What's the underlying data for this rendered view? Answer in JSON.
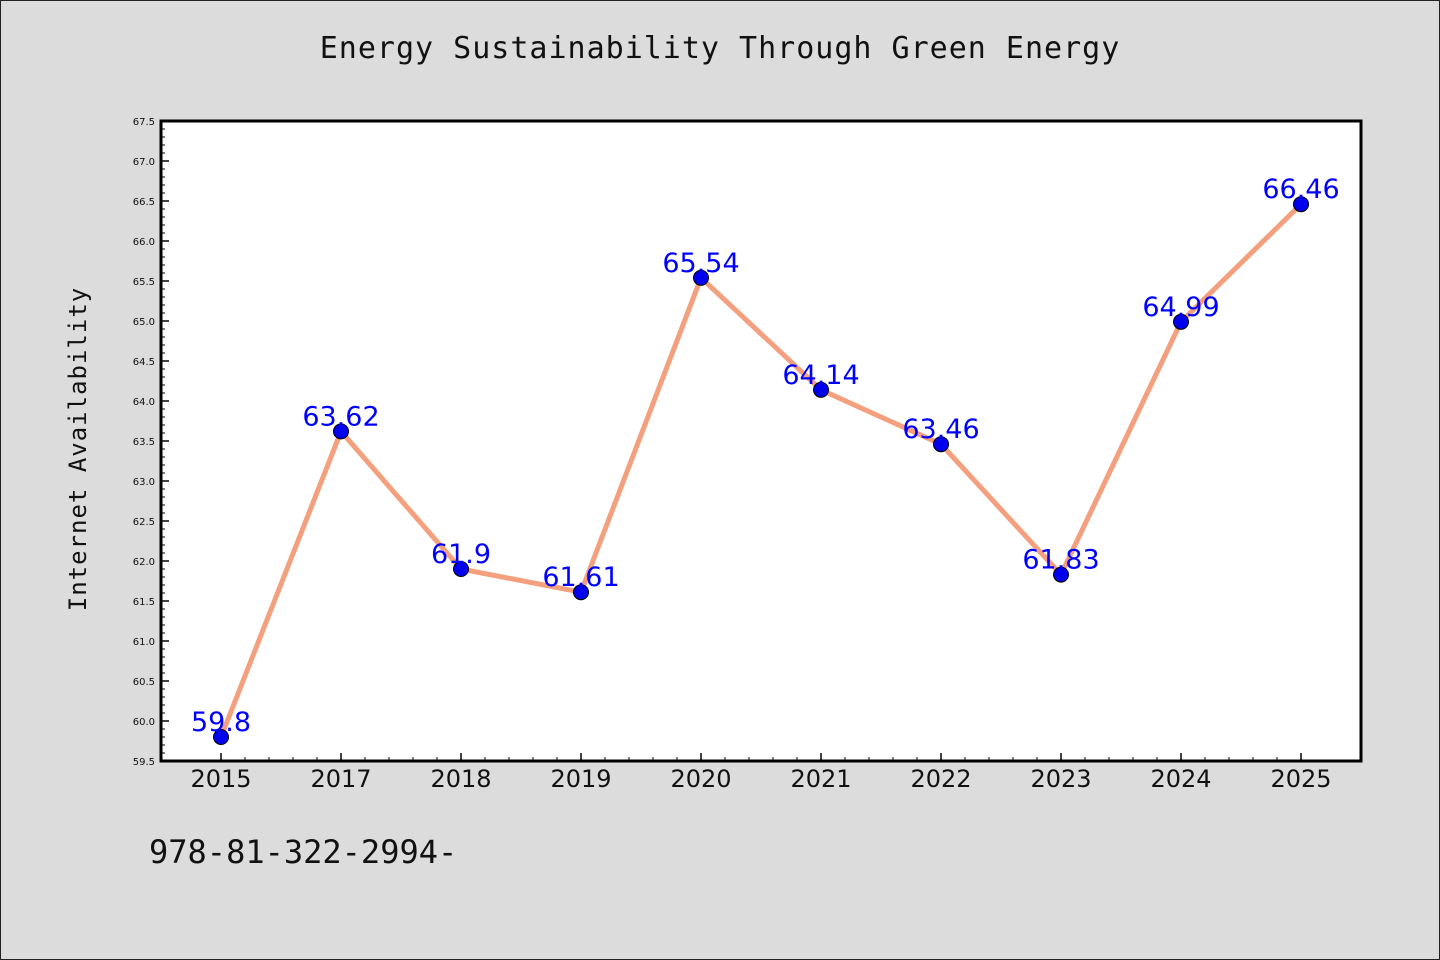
{
  "chart_data": {
    "type": "line",
    "title": "Energy Sustainability Through Green Energy",
    "xlabel": "",
    "ylabel": "Internet Availability",
    "categories": [
      "2015",
      "2017",
      "2018",
      "2019",
      "2020",
      "2021",
      "2022",
      "2023",
      "2024",
      "2025"
    ],
    "series": [
      {
        "values": [
          59.8,
          63.62,
          61.9,
          61.61,
          65.54,
          64.14,
          63.46,
          61.83,
          64.99,
          66.46
        ],
        "line_color": "#f4a07e",
        "marker_color": "#0000ee"
      }
    ],
    "data_labels": [
      "59.8",
      "63.62",
      "61.9",
      "61.61",
      "65.54",
      "64.14",
      "63.46",
      "61.83",
      "64.99",
      "66.46"
    ],
    "ylim": [
      59.5,
      67.5
    ],
    "yticks": [
      "59.5",
      "60.0",
      "60.5",
      "61.0",
      "61.5",
      "62.0",
      "62.5",
      "63.0",
      "63.5",
      "64.0",
      "64.5",
      "65.0",
      "65.5",
      "66.0",
      "66.5",
      "67.0",
      "67.5"
    ],
    "grid": false,
    "legend": "none"
  },
  "footnote": "978-81-322-2994-"
}
